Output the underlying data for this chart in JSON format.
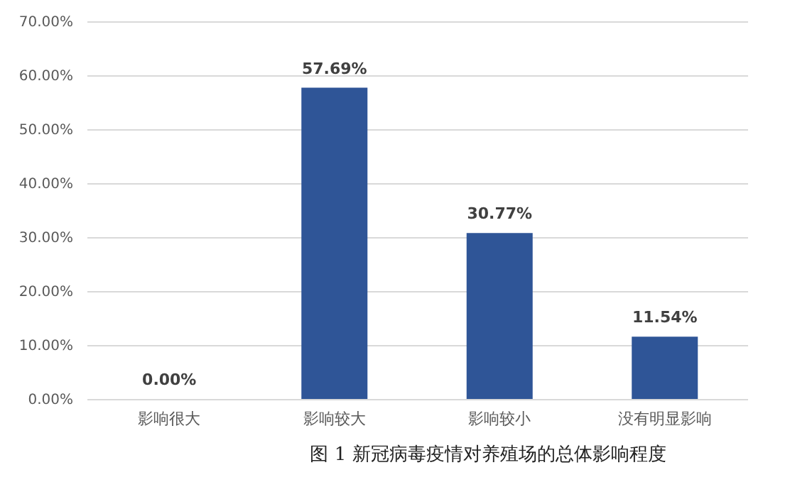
{
  "chart_data": {
    "type": "bar",
    "title": "图 1  新冠病毒疫情对养殖场的总体影响程度",
    "categories": [
      "影响很大",
      "影响较大",
      "影响较小",
      "没有明显影响"
    ],
    "values": [
      0,
      57.69,
      30.77,
      11.54
    ],
    "value_labels": [
      "0.00%",
      "57.69%",
      "30.77%",
      "11.54%"
    ],
    "color": "#2f5597",
    "ylim": [
      0,
      70
    ],
    "yticks": [
      {
        "value": 0,
        "label": "0.00%"
      },
      {
        "value": 10,
        "label": "10.00%"
      },
      {
        "value": 20,
        "label": "20.00%"
      },
      {
        "value": 30,
        "label": "30.00%"
      },
      {
        "value": 40,
        "label": "40.00%"
      },
      {
        "value": 50,
        "label": "50.00%"
      },
      {
        "value": 60,
        "label": "60.00%"
      },
      {
        "value": 70,
        "label": "70.00%"
      }
    ],
    "grid": "y"
  }
}
